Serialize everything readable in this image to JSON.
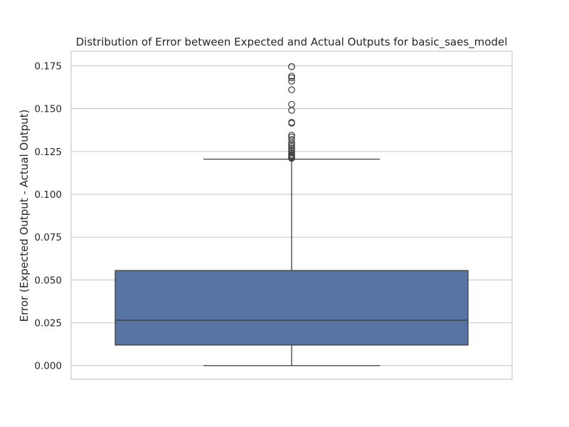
{
  "chart_data": {
    "type": "box",
    "title": "Distribution of Error between Expected and Actual Outputs for basic_saes_model",
    "xlabel": "",
    "ylabel": "Error (Expected Output - Actual Output)",
    "ylim": [
      -0.008,
      0.1835
    ],
    "yticks": [
      0.0,
      0.025,
      0.05,
      0.075,
      0.1,
      0.125,
      0.15,
      0.175
    ],
    "ytick_labels": [
      "0.000",
      "0.025",
      "0.050",
      "0.075",
      "0.100",
      "0.125",
      "0.150",
      "0.175"
    ],
    "grid": true,
    "box": {
      "min": 0.0,
      "q1": 0.012,
      "median": 0.0265,
      "q3": 0.0555,
      "max": 0.1205,
      "color": "#5874a5",
      "outliers": [
        0.121,
        0.1215,
        0.122,
        0.1225,
        0.123,
        0.124,
        0.125,
        0.126,
        0.127,
        0.128,
        0.129,
        0.13,
        0.132,
        0.1335,
        0.1345,
        0.1415,
        0.142,
        0.149,
        0.1525,
        0.161,
        0.166,
        0.168,
        0.169,
        0.1745,
        0.1745
      ]
    }
  }
}
